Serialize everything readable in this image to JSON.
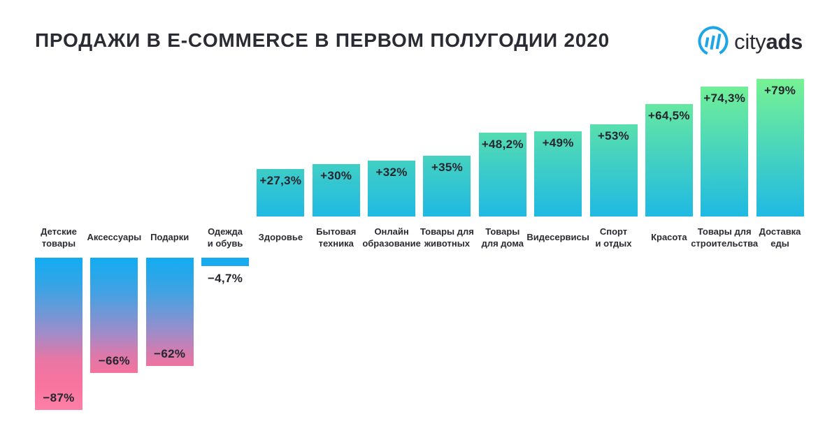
{
  "page": {
    "background": "#ffffff"
  },
  "header": {
    "title": "ПРОДАЖИ В E-COMMERCE В ПЕРВОМ ПОЛУГОДИИ 2020",
    "logo": {
      "brand": "cityads",
      "part_regular": "city",
      "part_bold": "ads",
      "icon": "bar-chart-circle-icon",
      "icon_color": "#1ca6e9",
      "text_color": "#2b2b35"
    }
  },
  "chart_data": {
    "type": "bar",
    "orientation": "vertical-diverging",
    "unit": "%",
    "title": "ПРОДАЖИ В E-COMMERCE В ПЕРВОМ ПОЛУГОДИИ 2020",
    "grid": false,
    "legend": false,
    "axes_hidden": true,
    "categories": [
      "Детские\nтовары",
      "Аксессуары",
      "Подарки",
      "Одежда\nи обувь",
      "Здоровье",
      "Бытовая\nтехника",
      "Онлайн\nобразование",
      "Товары для\nживотных",
      "Товары\nдля дома",
      "Видесервисы",
      "Спорт\nи отдых",
      "Красота",
      "Товары для\nстроительства",
      "Доставка\nеды"
    ],
    "values": [
      -87,
      -66,
      -62,
      -4.7,
      27.3,
      30,
      32,
      35,
      48.2,
      49,
      53,
      64.5,
      74.3,
      79
    ],
    "value_labels": [
      "−87%",
      "−66%",
      "−62%",
      "−4,7%",
      "+27,3%",
      "+30%",
      "+32%",
      "+35%",
      "+48,2%",
      "+49%",
      "+53%",
      "+64,5%",
      "+74,3%",
      "+79%"
    ],
    "positive_gradient": [
      [
        0,
        "#76f293"
      ],
      [
        1,
        "#1fb9e3"
      ]
    ],
    "negative_gradient": [
      [
        0,
        "#12acf2"
      ],
      [
        0.22,
        "#3da3e4"
      ],
      [
        0.5,
        "#a18cc9"
      ],
      [
        0.68,
        "#ee74a1"
      ],
      [
        0.8,
        "#f8719d"
      ],
      [
        1,
        "#fc80a7"
      ]
    ],
    "label_color": "#26262e"
  }
}
